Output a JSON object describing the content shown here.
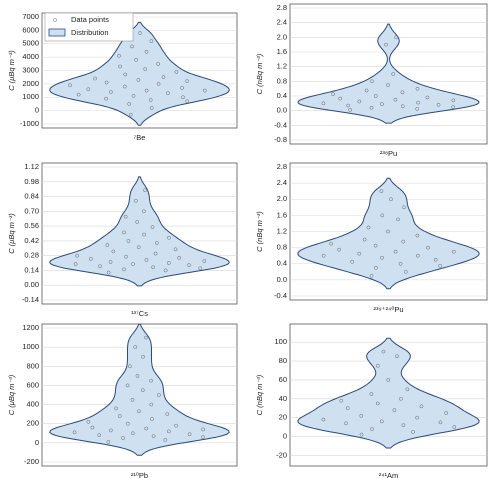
{
  "chart_data": [
    {
      "type": "violin",
      "xlabel": "⁷Be",
      "ylabel": "C (μBq m⁻³)",
      "color": "#cfe0f1",
      "line_color": "#2b4a78",
      "ylim": [
        -1000,
        7000
      ],
      "yticks": [
        -1000,
        0,
        1000,
        2000,
        3000,
        4000,
        5000,
        6000,
        7000
      ],
      "grid": true,
      "legend": {
        "position": "upper left",
        "points": "Data points",
        "distribution": "Distribution"
      },
      "values": [
        -300,
        200,
        500,
        700,
        800,
        900,
        1000,
        1100,
        1200,
        1300,
        1400,
        1500,
        1500,
        1600,
        1700,
        1800,
        1900,
        2000,
        2100,
        2200,
        2300,
        2400,
        2500,
        2700,
        2900,
        3100,
        3300,
        3500,
        3800,
        4100,
        4400,
        4800,
        5200,
        5800
      ]
    },
    {
      "type": "violin",
      "xlabel": "²³⁸Pu",
      "ylabel": "C (nBq m⁻³)",
      "color": "#cfe0f1",
      "line_color": "#2b4a78",
      "ylim": [
        -0.8,
        2.8
      ],
      "yticks": [
        -0.8,
        -0.4,
        {
          "value": 0,
          "label": "0.0"
        },
        0.4,
        0.8,
        1.2,
        1.6,
        {
          "value": 2,
          "label": "2.0"
        },
        2.4,
        2.8
      ],
      "grid": true,
      "values": [
        0.02,
        0.05,
        0.08,
        0.1,
        0.12,
        0.14,
        0.16,
        0.18,
        0.2,
        0.22,
        0.25,
        0.28,
        0.3,
        0.33,
        0.36,
        0.4,
        0.45,
        0.5,
        0.55,
        0.6,
        0.7,
        0.8,
        1.0,
        1.8,
        2.0
      ]
    },
    {
      "type": "violin",
      "xlabel": "¹³⁷Cs",
      "ylabel": "C (μBq m⁻³)",
      "color": "#cfe0f1",
      "line_color": "#2b4a78",
      "ylim": [
        -0.14,
        1.12
      ],
      "yticks": [
        -0.14,
        {
          "value": 0,
          "label": "0.00"
        },
        0.14,
        0.28,
        0.42,
        0.56,
        {
          "value": 0.7,
          "label": "0.70"
        },
        0.84,
        0.98,
        1.12
      ],
      "grid": true,
      "values": [
        0.12,
        0.14,
        0.15,
        0.16,
        0.17,
        0.18,
        0.19,
        0.2,
        0.2,
        0.21,
        0.22,
        0.23,
        0.24,
        0.25,
        0.26,
        0.27,
        0.28,
        0.3,
        0.32,
        0.34,
        0.36,
        0.38,
        0.4,
        0.42,
        0.45,
        0.48,
        0.5,
        0.55,
        0.6,
        0.65,
        0.7,
        0.8,
        0.9
      ]
    },
    {
      "type": "violin",
      "xlabel": "²³⁹⁺²⁴⁰Pu",
      "ylabel": "C (nBq m⁻³)",
      "color": "#cfe0f1",
      "line_color": "#2b4a78",
      "ylim": [
        -0.4,
        2.8
      ],
      "yticks": [
        -0.4,
        {
          "value": 0,
          "label": "0.0"
        },
        0.4,
        0.8,
        1.2,
        1.6,
        {
          "value": 2,
          "label": "2.0"
        },
        2.4,
        2.8
      ],
      "grid": true,
      "values": [
        0.1,
        0.2,
        0.3,
        0.35,
        0.4,
        0.45,
        0.5,
        0.55,
        0.6,
        0.6,
        0.65,
        0.7,
        0.7,
        0.75,
        0.8,
        0.85,
        0.9,
        0.95,
        1.0,
        1.1,
        1.2,
        1.3,
        1.5,
        1.6,
        1.8,
        2.0,
        2.2
      ]
    },
    {
      "type": "violin",
      "xlabel": "²¹⁰Pb",
      "ylabel": "C (μBq m⁻³)",
      "color": "#cfe0f1",
      "line_color": "#2b4a78",
      "ylim": [
        -200,
        1200
      ],
      "yticks": [
        -200,
        0,
        200,
        400,
        600,
        800,
        1000,
        1200
      ],
      "grid": true,
      "values": [
        10,
        30,
        50,
        60,
        70,
        80,
        90,
        100,
        110,
        120,
        130,
        140,
        150,
        160,
        180,
        200,
        220,
        250,
        280,
        300,
        330,
        360,
        400,
        450,
        500,
        550,
        600,
        650,
        700,
        800,
        900,
        1000,
        1100
      ]
    },
    {
      "type": "violin",
      "xlabel": "²⁴¹Am",
      "ylabel": "C (nBq m⁻³)",
      "color": "#cfe0f1",
      "line_color": "#2b4a78",
      "ylim": [
        -27,
        115
      ],
      "yticks": [
        -20,
        0,
        20,
        40,
        60,
        80,
        100
      ],
      "grid": true,
      "values": [
        2,
        5,
        8,
        10,
        12,
        14,
        15,
        16,
        18,
        20,
        22,
        25,
        28,
        30,
        32,
        35,
        38,
        40,
        45,
        50,
        60,
        75,
        85,
        90
      ]
    }
  ]
}
